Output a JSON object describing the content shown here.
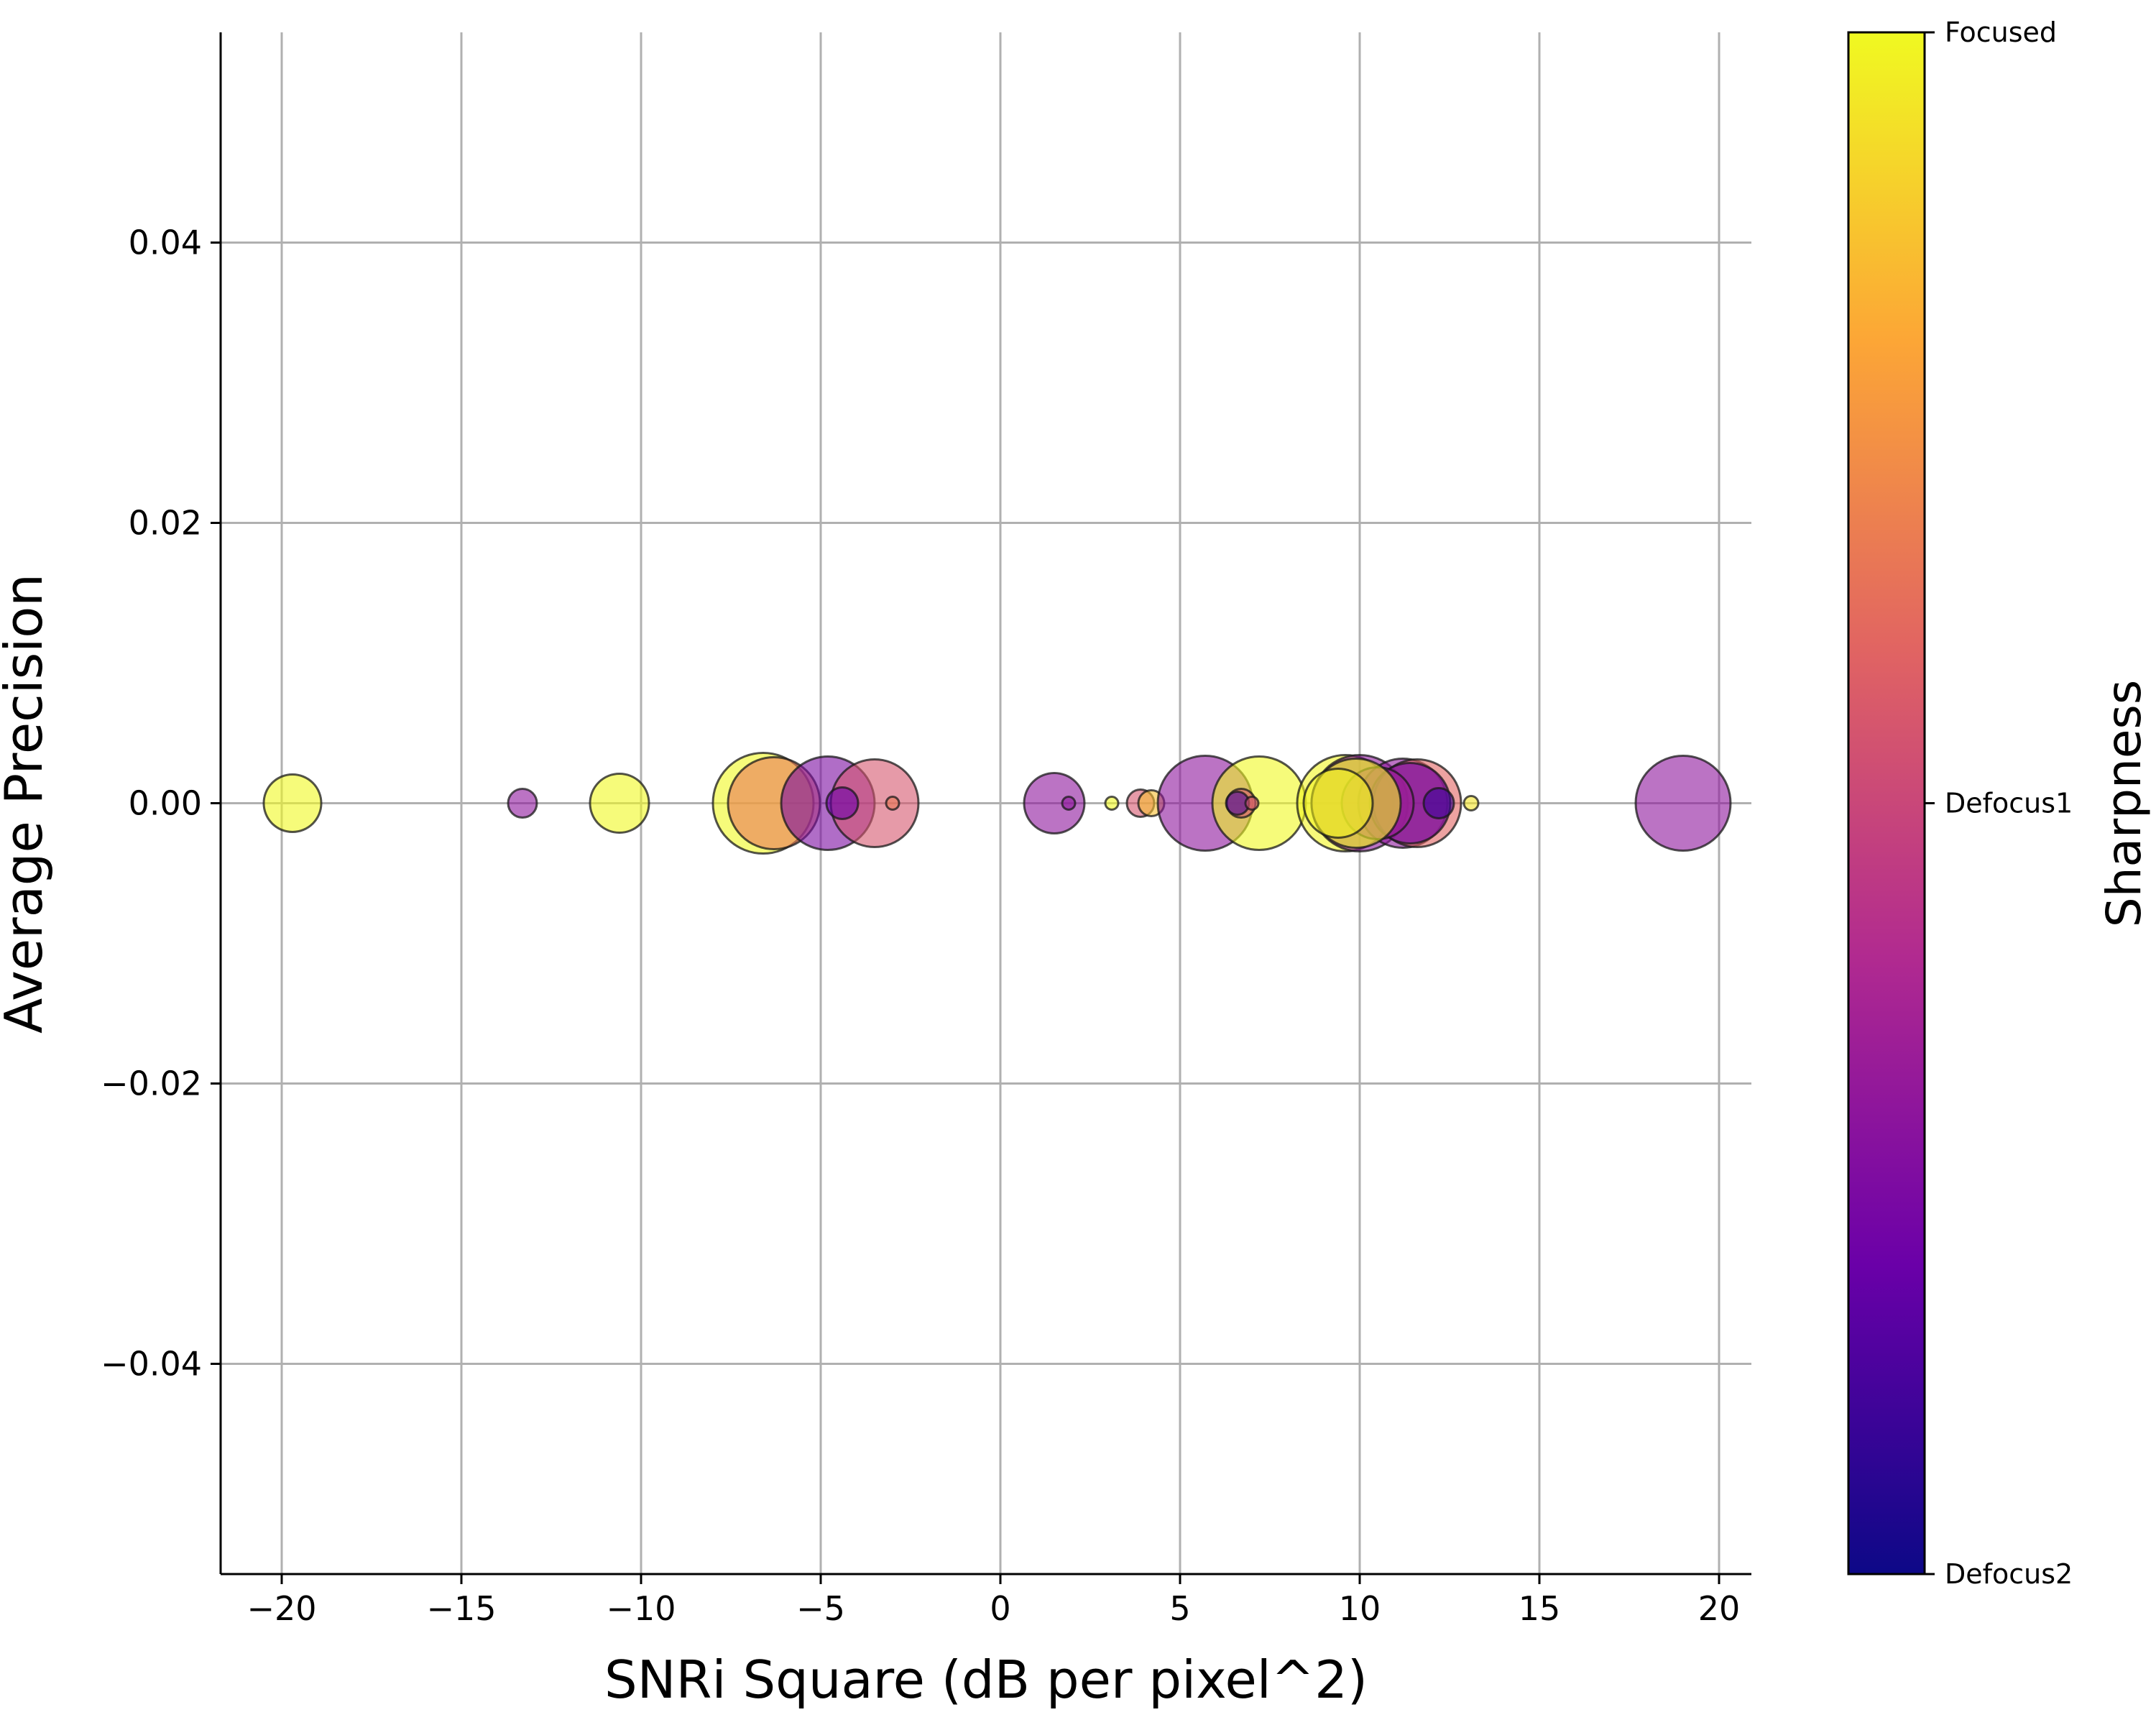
{
  "chart_data": {
    "type": "scatter",
    "title": "",
    "xlabel": "SNRi Square (dB per pixel^2)",
    "ylabel": "Average Precision",
    "xlim": [
      -21.7,
      20.9
    ],
    "ylim": [
      -0.055,
      0.055
    ],
    "xticks": [
      -20,
      -15,
      -10,
      -5,
      0,
      5,
      10,
      15,
      20
    ],
    "xtick_labels": [
      "−20",
      "−15",
      "−10",
      "−5",
      "0",
      "5",
      "10",
      "15",
      "20"
    ],
    "yticks": [
      0.04,
      0.02,
      0.0,
      -0.02,
      -0.04
    ],
    "ytick_labels": [
      "0.04",
      "0.02",
      "0.00",
      "−0.02",
      "−0.04"
    ],
    "grid": true,
    "colormap": "plasma",
    "colors": [
      "#0d0887",
      "#6a00a8",
      "#b12a90",
      "#e16462",
      "#fca636",
      "#f0f921"
    ],
    "colorbar": {
      "label": "Sharpness",
      "ticks": [
        0,
        0.5,
        1
      ],
      "tick_labels": [
        "Defocus2",
        "Defocus1",
        "Focused"
      ]
    },
    "points": [
      {
        "x": -19.7,
        "y": 0,
        "size": 40,
        "c": 1.0
      },
      {
        "x": -13.3,
        "y": 0,
        "size": 20,
        "c": 0.3
      },
      {
        "x": -10.6,
        "y": 0,
        "size": 41,
        "c": 1.0
      },
      {
        "x": -6.6,
        "y": 0,
        "size": 70,
        "c": 1.0
      },
      {
        "x": -6.3,
        "y": 0,
        "size": 64,
        "c": 0.66
      },
      {
        "x": -4.8,
        "y": 0,
        "size": 65,
        "c": 0.25
      },
      {
        "x": -3.5,
        "y": 0,
        "size": 61,
        "c": 0.55
      },
      {
        "x": -4.4,
        "y": 0,
        "size": 22,
        "c": 0.2
      },
      {
        "x": -3.0,
        "y": 0,
        "size": 9,
        "c": 0.66
      },
      {
        "x": 1.5,
        "y": 0,
        "size": 42,
        "c": 0.3
      },
      {
        "x": 1.9,
        "y": 0,
        "size": 9,
        "c": 0.3
      },
      {
        "x": 3.1,
        "y": 0,
        "size": 9,
        "c": 1.0
      },
      {
        "x": 3.9,
        "y": 0,
        "size": 19,
        "c": 0.55
      },
      {
        "x": 4.2,
        "y": 0,
        "size": 18,
        "c": 0.86
      },
      {
        "x": 5.7,
        "y": 0,
        "size": 66,
        "c": 0.3
      },
      {
        "x": 7.2,
        "y": 0,
        "size": 65,
        "c": 1.0
      },
      {
        "x": 6.7,
        "y": 0,
        "size": 20,
        "c": 0.55
      },
      {
        "x": 6.6,
        "y": 0,
        "size": 16,
        "c": 0.12
      },
      {
        "x": 7.0,
        "y": 0,
        "size": 9,
        "c": 0.55
      },
      {
        "x": 9.6,
        "y": 0,
        "size": 67,
        "c": 0.99
      },
      {
        "x": 10.0,
        "y": 0,
        "size": 67,
        "c": 0.3
      },
      {
        "x": 11.2,
        "y": 0,
        "size": 62,
        "c": 0.3
      },
      {
        "x": 11.6,
        "y": 0,
        "size": 61,
        "c": 0.6
      },
      {
        "x": 11.4,
        "y": 0,
        "size": 56,
        "c": 0.2
      },
      {
        "x": 10.5,
        "y": 0,
        "size": 50,
        "c": 0.35
      },
      {
        "x": 12.2,
        "y": 0,
        "size": 21,
        "c": 0.1
      },
      {
        "x": 13.1,
        "y": 0,
        "size": 10,
        "c": 0.95
      },
      {
        "x": 9.9,
        "y": 0,
        "size": 62,
        "c": 1.0
      },
      {
        "x": 9.4,
        "y": 0,
        "size": 48,
        "c": 0.98
      },
      {
        "x": 19.0,
        "y": 0,
        "size": 66,
        "c": 0.3
      }
    ]
  }
}
